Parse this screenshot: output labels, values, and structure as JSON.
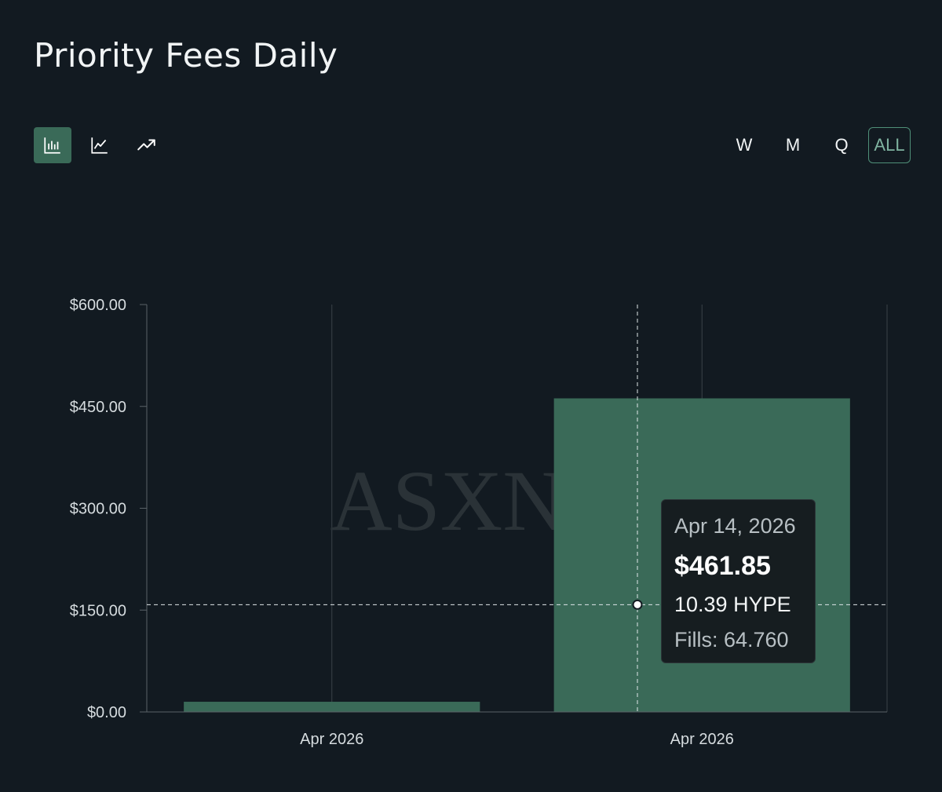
{
  "page": {
    "title": "Priority Fees Daily"
  },
  "toolbar": {
    "chart_types": [
      {
        "name": "bar",
        "icon": "bar-chart-icon",
        "active": true
      },
      {
        "name": "line",
        "icon": "line-chart-icon",
        "active": false
      },
      {
        "name": "trend",
        "icon": "trending-up-icon",
        "active": false
      }
    ],
    "ranges": [
      {
        "label": "W",
        "active": false
      },
      {
        "label": "M",
        "active": false
      },
      {
        "label": "Q",
        "active": false
      },
      {
        "label": "ALL",
        "active": true
      }
    ]
  },
  "watermark": "ASXN",
  "tooltip": {
    "date": "Apr 14, 2026",
    "value": "$461.85",
    "hype": "10.39 HYPE",
    "fills": "Fills: 64.760"
  },
  "colors": {
    "background": "#121a21",
    "bar": "#3a6a58",
    "accent": "#4f8f78",
    "grid": "#394148"
  },
  "chart_data": {
    "type": "bar",
    "title": "Priority Fees Daily",
    "categories": [
      "Apr 2026",
      "Apr 2026"
    ],
    "values": [
      15,
      461.85
    ],
    "ylim": [
      0,
      600
    ],
    "yticks": [
      0,
      150,
      300,
      450,
      600
    ],
    "ytick_labels": [
      "$0.00",
      "$150.00",
      "$300.00",
      "$450.00",
      "$600.00"
    ],
    "crosshair_value": 158,
    "hover_index": 1,
    "xlabel": "",
    "ylabel": ""
  }
}
